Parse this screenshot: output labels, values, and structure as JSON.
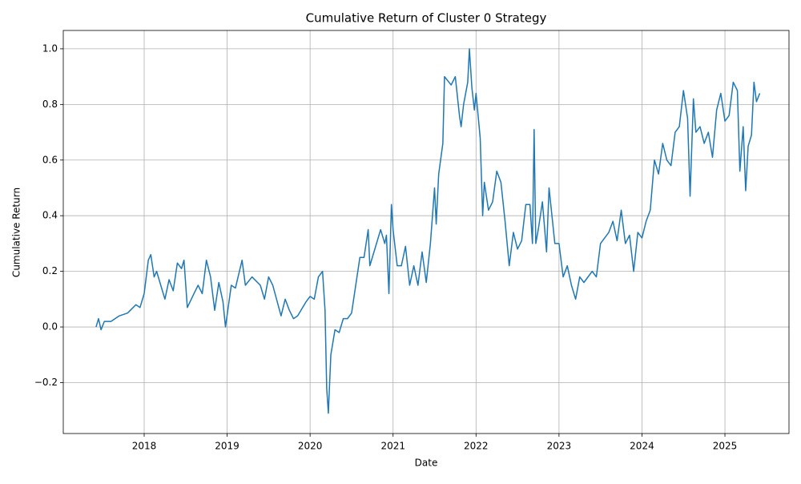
{
  "chart_data": {
    "type": "line",
    "title": "Cumulative Return of Cluster 0 Strategy",
    "x_label": "Date",
    "y_label": "Cumulative Return",
    "color": "#1f77b4",
    "grid": true,
    "xlim": [
      2017.025,
      2025.772
    ],
    "ylim": [
      -0.383,
      1.066
    ],
    "xticks": [
      2018,
      2019,
      2020,
      2021,
      2022,
      2023,
      2024,
      2025
    ],
    "yticks": [
      {
        "value": -0.2,
        "label": "−0.2"
      },
      {
        "value": 0,
        "label": "0.0"
      },
      0.2,
      0.4,
      0.6,
      0.8,
      {
        "value": 1,
        "label": "1.0"
      }
    ],
    "x": [
      2017.42,
      2017.45,
      2017.48,
      2017.52,
      2017.6,
      2017.7,
      2017.8,
      2017.9,
      2017.95,
      2018.0,
      2018.05,
      2018.08,
      2018.12,
      2018.15,
      2018.2,
      2018.25,
      2018.3,
      2018.35,
      2018.4,
      2018.45,
      2018.48,
      2018.52,
      2018.6,
      2018.65,
      2018.7,
      2018.75,
      2018.8,
      2018.85,
      2018.9,
      2018.95,
      2018.98,
      2019.05,
      2019.1,
      2019.18,
      2019.22,
      2019.3,
      2019.4,
      2019.45,
      2019.5,
      2019.55,
      2019.65,
      2019.7,
      2019.75,
      2019.8,
      2019.85,
      2019.95,
      2020.0,
      2020.05,
      2020.1,
      2020.15,
      2020.18,
      2020.2,
      2020.22,
      2020.25,
      2020.3,
      2020.35,
      2020.4,
      2020.45,
      2020.5,
      2020.55,
      2020.6,
      2020.65,
      2020.7,
      2020.72,
      2020.78,
      2020.85,
      2020.9,
      2020.92,
      2020.95,
      2020.98,
      2021.0,
      2021.05,
      2021.1,
      2021.15,
      2021.2,
      2021.25,
      2021.3,
      2021.35,
      2021.4,
      2021.45,
      2021.5,
      2021.52,
      2021.55,
      2021.6,
      2021.62,
      2021.7,
      2021.75,
      2021.8,
      2021.82,
      2021.85,
      2021.9,
      2021.92,
      2021.95,
      2021.98,
      2022.0,
      2022.05,
      2022.08,
      2022.1,
      2022.15,
      2022.2,
      2022.25,
      2022.3,
      2022.35,
      2022.4,
      2022.45,
      2022.5,
      2022.55,
      2022.6,
      2022.65,
      2022.68,
      2022.7,
      2022.72,
      2022.75,
      2022.8,
      2022.85,
      2022.88,
      2022.95,
      2023.0,
      2023.05,
      2023.1,
      2023.15,
      2023.2,
      2023.25,
      2023.3,
      2023.4,
      2023.45,
      2023.5,
      2023.6,
      2023.65,
      2023.7,
      2023.75,
      2023.8,
      2023.85,
      2023.9,
      2023.95,
      2024.0,
      2024.05,
      2024.1,
      2024.15,
      2024.2,
      2024.25,
      2024.3,
      2024.35,
      2024.4,
      2024.45,
      2024.5,
      2024.55,
      2024.58,
      2024.62,
      2024.65,
      2024.7,
      2024.75,
      2024.8,
      2024.85,
      2024.9,
      2024.95,
      2025.0,
      2025.05,
      2025.1,
      2025.15,
      2025.18,
      2025.22,
      2025.25,
      2025.28,
      2025.32,
      2025.35,
      2025.38,
      2025.42
    ],
    "values": [
      0.0,
      0.03,
      -0.01,
      0.02,
      0.02,
      0.04,
      0.05,
      0.08,
      0.07,
      0.12,
      0.24,
      0.26,
      0.18,
      0.2,
      0.15,
      0.1,
      0.17,
      0.13,
      0.23,
      0.21,
      0.24,
      0.07,
      0.12,
      0.15,
      0.12,
      0.24,
      0.18,
      0.06,
      0.16,
      0.09,
      0.0,
      0.15,
      0.14,
      0.24,
      0.15,
      0.18,
      0.15,
      0.1,
      0.18,
      0.15,
      0.04,
      0.1,
      0.06,
      0.03,
      0.04,
      0.09,
      0.11,
      0.1,
      0.18,
      0.2,
      0.06,
      -0.22,
      -0.31,
      -0.1,
      -0.01,
      -0.02,
      0.03,
      0.03,
      0.05,
      0.15,
      0.25,
      0.25,
      0.35,
      0.22,
      0.28,
      0.35,
      0.3,
      0.33,
      0.12,
      0.44,
      0.35,
      0.22,
      0.22,
      0.29,
      0.15,
      0.22,
      0.15,
      0.27,
      0.16,
      0.3,
      0.5,
      0.37,
      0.55,
      0.66,
      0.9,
      0.87,
      0.9,
      0.76,
      0.72,
      0.8,
      0.88,
      1.0,
      0.86,
      0.78,
      0.84,
      0.68,
      0.4,
      0.52,
      0.42,
      0.45,
      0.56,
      0.52,
      0.38,
      0.22,
      0.34,
      0.28,
      0.31,
      0.44,
      0.44,
      0.3,
      0.71,
      0.3,
      0.35,
      0.45,
      0.27,
      0.5,
      0.3,
      0.3,
      0.18,
      0.22,
      0.15,
      0.1,
      0.18,
      0.16,
      0.2,
      0.18,
      0.3,
      0.34,
      0.38,
      0.31,
      0.42,
      0.3,
      0.33,
      0.2,
      0.34,
      0.32,
      0.38,
      0.42,
      0.6,
      0.55,
      0.66,
      0.6,
      0.58,
      0.7,
      0.72,
      0.85,
      0.75,
      0.47,
      0.82,
      0.7,
      0.72,
      0.66,
      0.7,
      0.61,
      0.78,
      0.84,
      0.74,
      0.76,
      0.88,
      0.85,
      0.56,
      0.72,
      0.49,
      0.65,
      0.69,
      0.88,
      0.81,
      0.84
    ]
  }
}
